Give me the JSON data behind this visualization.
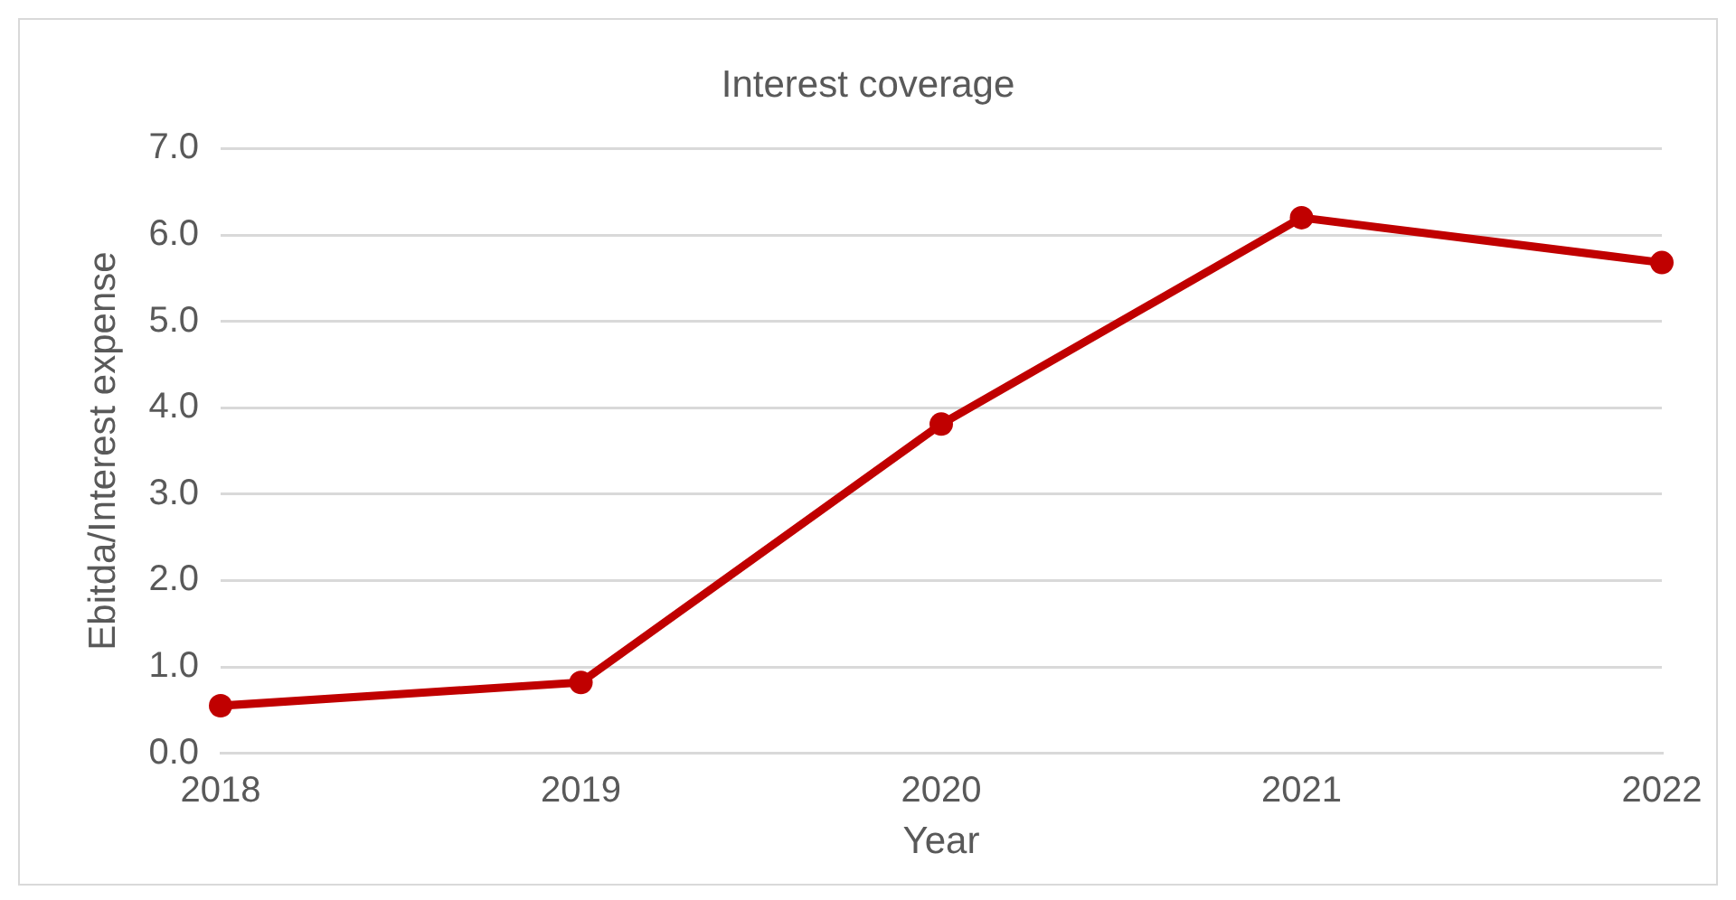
{
  "chart_data": {
    "type": "line",
    "title": "Interest coverage",
    "xlabel": "Year",
    "ylabel": "Ebitda/Interest expense",
    "categories": [
      "2018",
      "2019",
      "2020",
      "2021",
      "2022"
    ],
    "series": [
      {
        "color": "#c00000",
        "values": [
          0.55,
          0.82,
          3.81,
          6.2,
          5.68
        ]
      }
    ],
    "ylim": [
      0,
      7
    ],
    "yticks": [
      {
        "value": 0,
        "label": "0.0"
      },
      {
        "value": 1,
        "label": "1.0"
      },
      {
        "value": 2,
        "label": "2.0"
      },
      {
        "value": 3,
        "label": "3.0"
      },
      {
        "value": 4,
        "label": "4.0"
      },
      {
        "value": 5,
        "label": "5.0"
      },
      {
        "value": 6,
        "label": "6.0"
      },
      {
        "value": 7,
        "label": "7.0"
      }
    ],
    "grid": "y",
    "marker": "circle",
    "line_style": "solid",
    "legend": false
  }
}
